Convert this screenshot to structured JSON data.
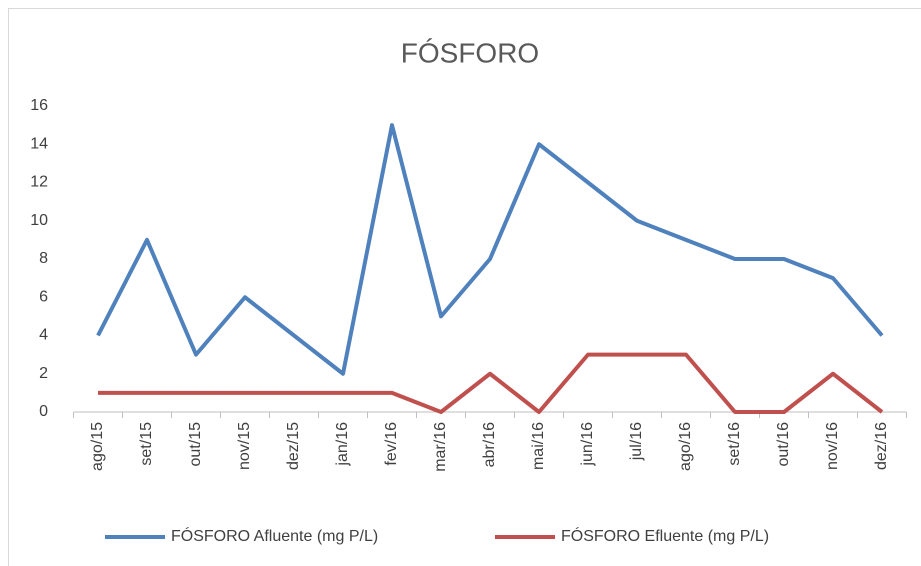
{
  "chart_data": {
    "type": "line",
    "title": "FÓSFORO",
    "categories": [
      "ago/15",
      "set/15",
      "out/15",
      "nov/15",
      "dez/15",
      "jan/16",
      "fev/16",
      "mar/16",
      "abr/16",
      "mai/16",
      "jun/16",
      "jul/16",
      "ago/16",
      "set/16",
      "out/16",
      "nov/16",
      "dez/16"
    ],
    "series": [
      {
        "name": "FÓSFORO Afluente (mg P/L)",
        "color": "#4f81bd",
        "values": [
          4,
          9,
          3,
          6,
          4,
          2,
          15,
          5,
          8,
          14,
          12,
          10,
          9,
          8,
          8,
          7,
          4
        ]
      },
      {
        "name": "FÓSFORO Efluente (mg P/L)",
        "color": "#c0504d",
        "values": [
          1,
          1,
          1,
          1,
          1,
          1,
          1,
          0,
          2,
          0,
          3,
          3,
          3,
          0,
          0,
          2,
          0
        ]
      }
    ],
    "ylim": [
      0,
      16
    ],
    "yticks": [
      0,
      2,
      4,
      6,
      8,
      10,
      12,
      14,
      16
    ],
    "grid": false,
    "legend": "bottom"
  }
}
